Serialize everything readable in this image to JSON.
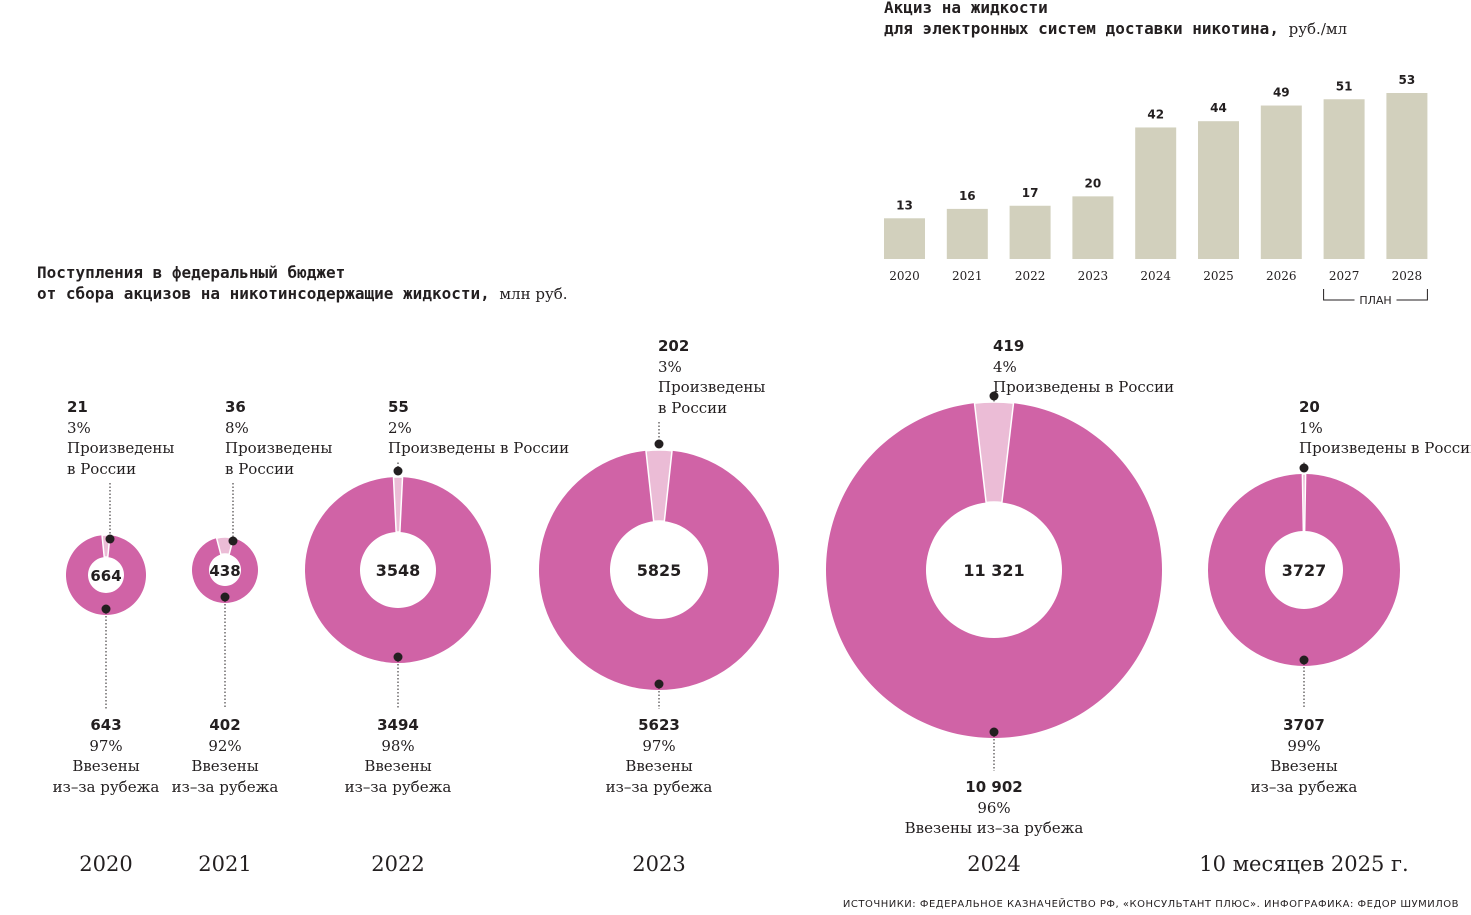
{
  "chart_data": [
    {
      "type": "bar",
      "title": "Акциз на жидкости",
      "subtitle": "для электронных систем доставки никотина,",
      "unit": "руб./мл",
      "categories": [
        "2020",
        "2021",
        "2022",
        "2023",
        "2024",
        "2025",
        "2026",
        "2027",
        "2028"
      ],
      "values": [
        13,
        16,
        17,
        20,
        42,
        44,
        49,
        51,
        53
      ],
      "plan_label": "ПЛАН",
      "plan_categories": [
        "2027",
        "2028"
      ],
      "colors": {
        "bar": "#d2d0bd"
      }
    },
    {
      "type": "pie",
      "title": "Поступления в федеральный бюджет",
      "subtitle": "от сбора акцизов на никотинсодержащие жидкости,",
      "unit": "млн руб.",
      "colors": {
        "imported": "#d063a6",
        "domestic": "#ebbcd6"
      },
      "series": [
        {
          "year": "2020",
          "total": "664",
          "domestic": 21,
          "domestic_label": "21",
          "domestic_pct": "3%",
          "domestic_text": [
            "Произведены",
            "в России"
          ],
          "imported": 643,
          "imported_label": "643",
          "imported_pct": "97%",
          "imported_text": [
            "Ввезены",
            "из–за рубежа"
          ]
        },
        {
          "year": "2021",
          "total": "438",
          "domestic": 36,
          "domestic_label": "36",
          "domestic_pct": "8%",
          "domestic_text": [
            "Произведены",
            "в России"
          ],
          "imported": 402,
          "imported_label": "402",
          "imported_pct": "92%",
          "imported_text": [
            "Ввезены",
            "из–за рубежа"
          ]
        },
        {
          "year": "2022",
          "total": "3548",
          "domestic": 55,
          "domestic_label": "55",
          "domestic_pct": "2%",
          "domestic_text": [
            "Произведены в России"
          ],
          "imported": 3494,
          "imported_label": "3494",
          "imported_pct": "98%",
          "imported_text": [
            "Ввезены",
            "из–за рубежа"
          ]
        },
        {
          "year": "2023",
          "total": "5825",
          "domestic": 202,
          "domestic_label": "202",
          "domestic_pct": "3%",
          "domestic_text": [
            "Произведены",
            "в России"
          ],
          "imported": 5623,
          "imported_label": "5623",
          "imported_pct": "97%",
          "imported_text": [
            "Ввезены",
            "из–за рубежа"
          ]
        },
        {
          "year": "2024",
          "total": "11 321",
          "domestic": 419,
          "domestic_label": "419",
          "domestic_pct": "4%",
          "domestic_text": [
            "Произведены в России"
          ],
          "imported": 10902,
          "imported_label": "10 902",
          "imported_pct": "96%",
          "imported_text": [
            "Ввезены из–за рубежа"
          ]
        },
        {
          "year": "10 месяцев 2025 г.",
          "total": "3727",
          "domestic": 20,
          "domestic_label": "20",
          "domestic_pct": "1%",
          "domestic_text": [
            "Произведены в России"
          ],
          "imported": 3707,
          "imported_label": "3707",
          "imported_pct": "99%",
          "imported_text": [
            "Ввезены",
            "из–за рубежа"
          ]
        }
      ]
    }
  ],
  "source": "ИСТОЧНИКИ: ФЕДЕРАЛЬНОЕ КАЗНАЧЕЙСТВО РФ, «КОНСУЛЬТАНТ ПЛЮС». ИНФОГРАФИКА: ФЕДОР ШУМИЛОВ"
}
